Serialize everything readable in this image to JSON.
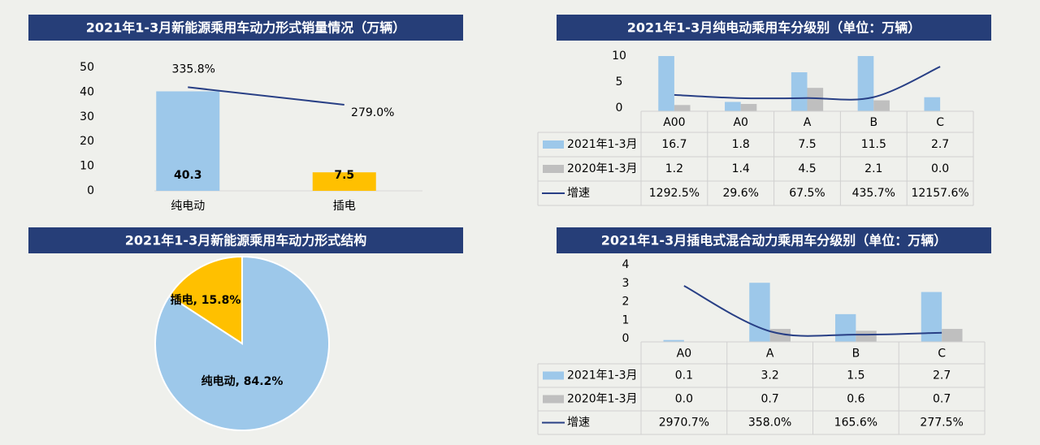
{
  "chart_data": [
    {
      "type": "bar",
      "title": "2021年1-3月新能源乘用车动力形式销量情况（万辆）",
      "categories": [
        "纯电动",
        "插电"
      ],
      "values": [
        40.3,
        7.5
      ],
      "colors": [
        "#9dc8ea",
        "#ffc000"
      ],
      "ylim": [
        0,
        50
      ],
      "yticks": [
        0,
        10,
        20,
        30,
        40,
        50
      ],
      "line": {
        "values": [
          335.8,
          279.0
        ],
        "value_labels": [
          "335.8%",
          "279.0%"
        ],
        "color": "#283f85",
        "axis": "y2"
      },
      "y2lim": [
        0,
        400
      ]
    },
    {
      "type": "pie",
      "title": "2021年1-3月新能源乘用车动力形式结构",
      "values": [
        84.2,
        15.8
      ],
      "value_labels": [
        "纯电动, 84.2%",
        "插电, 15.8%"
      ],
      "colors": [
        "#9dc8ea",
        "#ffc000"
      ]
    },
    {
      "type": "bar_table",
      "title": "2021年1-3月纯电动乘用车分级别（单位：万辆）",
      "categories": [
        "A00",
        "A0",
        "A",
        "B",
        "C"
      ],
      "series": [
        {
          "name": "2021年1-3月",
          "type": "bar",
          "color": "#9dc8ea",
          "values": [
            16.7,
            1.8,
            7.5,
            11.5,
            2.7
          ]
        },
        {
          "name": "2020年1-3月",
          "type": "bar",
          "color": "#bfbfbf",
          "values": [
            1.2,
            1.4,
            4.5,
            2.1,
            0.0
          ],
          "value_labels": [
            "1.2",
            "1.4",
            "4.5",
            "2.1",
            "0.0"
          ]
        },
        {
          "name": "增速",
          "type": "line",
          "color": "#283f85",
          "axis": "y2",
          "values": [
            1292.5,
            29.6,
            67.5,
            435.7,
            12157.6
          ],
          "value_labels": [
            "1292.5%",
            "29.6%",
            "67.5%",
            "435.7%",
            "12157.6%"
          ]
        }
      ],
      "ylim": [
        0,
        10
      ],
      "yticks": [
        0,
        5,
        10
      ],
      "y2lim": [
        -5000,
        15000
      ]
    },
    {
      "type": "bar_table",
      "title": "2021年1-3月插电式混合动力乘用车分级别（单位：万辆）",
      "categories": [
        "A0",
        "A",
        "B",
        "C"
      ],
      "series": [
        {
          "name": "2021年1-3月",
          "type": "bar",
          "color": "#9dc8ea",
          "values": [
            0.1,
            3.2,
            1.5,
            2.7
          ]
        },
        {
          "name": "2020年1-3月",
          "type": "bar",
          "color": "#bfbfbf",
          "values": [
            0.0,
            0.7,
            0.6,
            0.7
          ],
          "value_labels": [
            "0.0",
            "0.7",
            "0.6",
            "0.7"
          ]
        },
        {
          "name": "增速",
          "type": "line",
          "color": "#283f85",
          "axis": "y2",
          "values": [
            2970.7,
            358.0,
            165.6,
            277.5
          ],
          "value_labels": [
            "2970.7%",
            "358.0%",
            "165.6%",
            "277.5%"
          ]
        }
      ],
      "ylim": [
        0,
        4
      ],
      "yticks": [
        0,
        1,
        2,
        3,
        4
      ],
      "y2lim": [
        -250,
        4000
      ]
    }
  ]
}
